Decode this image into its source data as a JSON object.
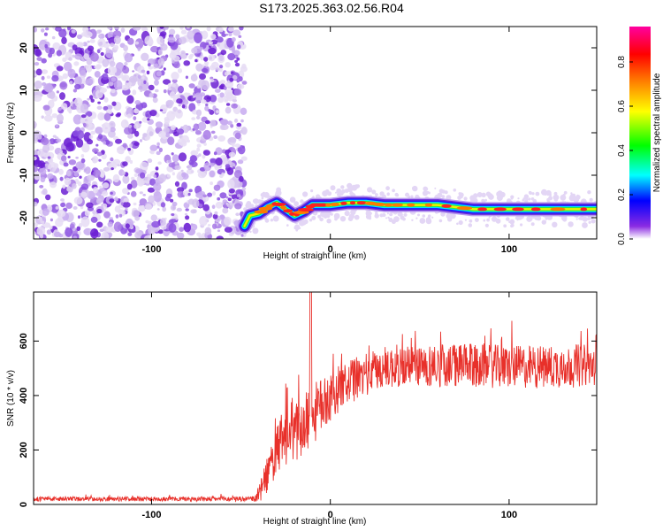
{
  "title": "S173.2025.363.02.56.R04",
  "colors": {
    "line": "#e8302a",
    "frame": "#000000",
    "speckle": "#7a2cd6"
  },
  "chart_data": [
    {
      "type": "heatmap",
      "xlabel": "Height of straight line (km)",
      "ylabel": "Frequency (Hz)",
      "xlim": [
        -166,
        149
      ],
      "ylim": [
        -25,
        25
      ],
      "xticks": [
        -100,
        0,
        100
      ],
      "xtick_labels": [
        "-100",
        "0",
        "100"
      ],
      "yticks": [
        20,
        10,
        0,
        -10,
        -20
      ],
      "ytick_labels": [
        "20",
        "10",
        "0",
        "-10",
        "-20"
      ],
      "noise_region_x": [
        -166,
        -48
      ],
      "ridge": {
        "description": "dominant frequency ridge",
        "x": [
          -48,
          -45,
          -40,
          -35,
          -30,
          -25,
          -20,
          -15,
          -10,
          -5,
          0,
          10,
          20,
          30,
          40,
          60,
          80,
          100,
          120,
          149
        ],
        "y": [
          -22,
          -19.5,
          -19,
          -17.5,
          -16.5,
          -18,
          -19.5,
          -18.5,
          -17,
          -17,
          -17,
          -16.5,
          -16.5,
          -17,
          -17,
          -17,
          -18,
          -18,
          -18,
          -18
        ]
      },
      "colorbar": {
        "label": "Normalized spectral amplitude",
        "ticks": [
          0.0,
          0.2,
          0.4,
          0.6,
          0.8
        ],
        "tick_labels": [
          "0.0",
          "0.2",
          "0.4",
          "0.6",
          "0.8"
        ],
        "range": [
          0,
          0.96
        ],
        "colormap": [
          "#ffffff",
          "#8a2be2",
          "#0000ff",
          "#00ffff",
          "#00ff00",
          "#ffff00",
          "#ff8000",
          "#ff0000",
          "#ff00a0"
        ]
      }
    },
    {
      "type": "line",
      "xlabel": "Height of straight line (km)",
      "ylabel": "SNR (10 * v/v)",
      "xlim": [
        -166,
        149
      ],
      "ylim": [
        0,
        780
      ],
      "xticks": [
        -100,
        0,
        100
      ],
      "xtick_labels": [
        "-100",
        "0",
        "100"
      ],
      "yticks": [
        0,
        200,
        400,
        600
      ],
      "ytick_labels": [
        "0",
        "200",
        "400",
        "600"
      ],
      "series": [
        {
          "name": "SNR",
          "x": [
            -166,
            -120,
            -80,
            -42,
            -38,
            -33,
            -28,
            -23,
            -18,
            -13,
            -8,
            -3,
            2,
            8,
            14,
            20,
            30,
            40,
            60,
            80,
            100,
            120,
            140,
            149
          ],
          "mean": [
            20,
            20,
            20,
            20,
            60,
            150,
            220,
            250,
            280,
            300,
            340,
            380,
            410,
            440,
            460,
            480,
            500,
            510,
            510,
            510,
            505,
            505,
            510,
            510
          ],
          "spread": [
            8,
            8,
            8,
            10,
            50,
            80,
            100,
            110,
            120,
            120,
            110,
            100,
            90,
            80,
            80,
            80,
            80,
            80,
            80,
            80,
            80,
            80,
            80,
            70
          ]
        }
      ],
      "spike": {
        "x": -11,
        "value": 780
      }
    }
  ]
}
